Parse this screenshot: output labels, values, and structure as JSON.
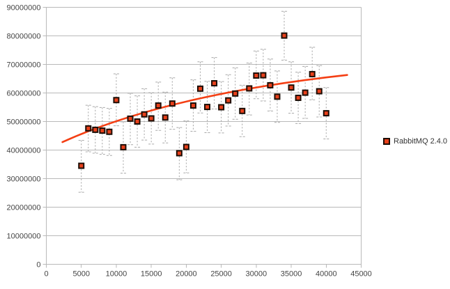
{
  "chart_data": {
    "type": "scatter",
    "title": "",
    "xlabel": "",
    "ylabel": "",
    "xlim": [
      0,
      45000
    ],
    "ylim": [
      0,
      90000000
    ],
    "x_ticks": [
      0,
      5000,
      10000,
      15000,
      20000,
      25000,
      30000,
      35000,
      40000,
      45000
    ],
    "y_ticks": [
      0,
      10000000,
      20000000,
      30000000,
      40000000,
      50000000,
      60000000,
      70000000,
      80000000,
      90000000
    ],
    "grid": "horizontal-only",
    "legend": {
      "position": "right",
      "entries": [
        "RabbitMQ 2.4.0"
      ]
    },
    "series": [
      {
        "name": "RabbitMQ 2.4.0",
        "marker": "filled-square",
        "x": [
          5000,
          6000,
          7000,
          8000,
          9000,
          10000,
          11000,
          12000,
          13000,
          14000,
          15000,
          16000,
          17000,
          18000,
          19000,
          20000,
          21000,
          22000,
          23000,
          24000,
          25000,
          26000,
          27000,
          28000,
          29000,
          30000,
          31000,
          32000,
          33000,
          34000,
          35000,
          36000,
          37000,
          38000,
          39000,
          40000
        ],
        "y": [
          34500000,
          47600000,
          47100000,
          46800000,
          46400000,
          57500000,
          41000000,
          51000000,
          50000000,
          52500000,
          51100000,
          55600000,
          51400000,
          56300000,
          38900000,
          41100000,
          55600000,
          61500000,
          55100000,
          63400000,
          55000000,
          57400000,
          59800000,
          53700000,
          61600000,
          66100000,
          66200000,
          62700000,
          58700000,
          80100000,
          61900000,
          58300000,
          60100000,
          66600000,
          60600000,
          52900000
        ],
        "error_low": [
          25200000,
          39400000,
          38900000,
          38500000,
          38100000,
          48500000,
          31900000,
          41900000,
          41000000,
          43500000,
          42100000,
          46900000,
          42500000,
          47300000,
          29600000,
          32000000,
          46600000,
          53000000,
          46100000,
          54400000,
          46000000,
          48400000,
          50800000,
          44700000,
          52300000,
          58000000,
          57200000,
          53700000,
          49700000,
          71500000,
          52900000,
          49300000,
          51100000,
          57600000,
          51600000,
          43900000
        ],
        "error_high": [
          43400000,
          55700000,
          55200000,
          54900000,
          54600000,
          66700000,
          49900000,
          59900000,
          59000000,
          61500000,
          60100000,
          63800000,
          60300000,
          65300000,
          47900000,
          50200000,
          64600000,
          70900000,
          64100000,
          72400000,
          64000000,
          66400000,
          68800000,
          62700000,
          70500000,
          74700000,
          75300000,
          71900000,
          67700000,
          88600000,
          70900000,
          67300000,
          69300000,
          76000000,
          69600000,
          61900000
        ]
      }
    ],
    "trend_line": {
      "shape": "logarithmic",
      "start": [
        2300,
        42800000
      ],
      "mid": [
        20000,
        57000000
      ],
      "end": [
        43000,
        66300000
      ]
    },
    "colors": {
      "background": "#ffffff",
      "grid": "#b9b9b9",
      "axis": "#b9b9b9",
      "error_bar": "#a8a8a8",
      "marker_fill": "#e8401b",
      "marker_stroke": "#1c0d05",
      "trend": "#f43f14",
      "label": "#444444"
    }
  }
}
